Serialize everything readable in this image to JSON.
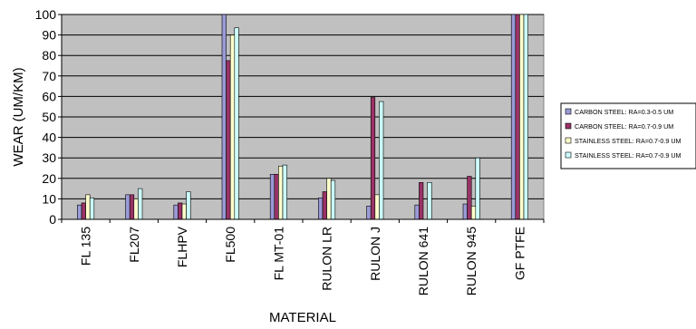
{
  "chart_data": {
    "type": "bar",
    "xlabel": "MATERIAL",
    "ylabel": "WEAR (UM/KM)",
    "ylim": [
      0,
      100
    ],
    "yticks": [
      0,
      10,
      20,
      30,
      40,
      50,
      60,
      70,
      80,
      90,
      100
    ],
    "grid": true,
    "legend_position": "right",
    "categories": [
      "FL 135",
      "FL207",
      "FLHPV",
      "FL500",
      "FL MT-01",
      "RULON LR",
      "RULON J",
      "RULON 641",
      "RULON 945",
      "GF PTFE"
    ],
    "series": [
      {
        "name": "CARBON STEEL: RA=0.3-0.5 UM",
        "color": "#9a9ad6",
        "values": [
          7,
          12,
          7,
          101,
          22,
          10.5,
          6.5,
          7,
          7.5,
          101
        ]
      },
      {
        "name": "CARBON STEEL: RA=0.7-0.9 UM",
        "color": "#993366",
        "values": [
          8,
          12,
          8,
          77.5,
          22,
          13.5,
          59.5,
          18,
          21,
          101
        ]
      },
      {
        "name": "STAINLESS STEEL: RA=0.7-0.9 UM",
        "color": "#ffffcc",
        "values": [
          12,
          10,
          7.5,
          90,
          26,
          20,
          12,
          0,
          6.5,
          101
        ]
      },
      {
        "name": "STAINLESS STEEL: RA=0.7-0.9 UM",
        "color": "#ccffff",
        "values": [
          10.5,
          15,
          13.5,
          93.5,
          26.5,
          19,
          57.5,
          18,
          30,
          101
        ]
      }
    ]
  },
  "colors": {
    "plot_background": "#c0c0c0",
    "bar_stroke": "#000000",
    "gridline": "#000000"
  }
}
